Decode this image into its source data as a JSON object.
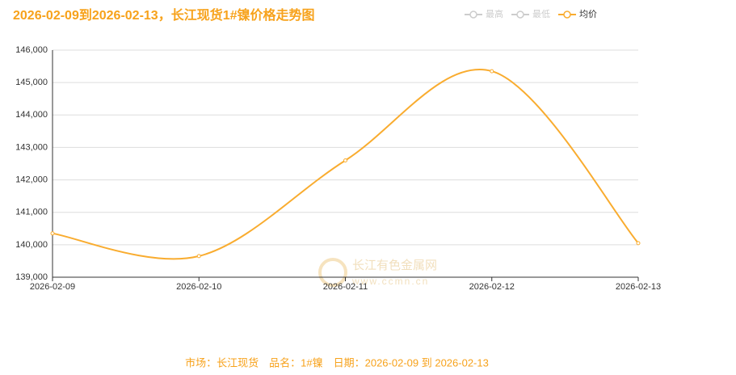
{
  "chart_data": {
    "type": "line",
    "title": "2026-02-09到2026-02-13，长江现货1#镍价格走势图",
    "categories": [
      "2026-02-09",
      "2026-02-10",
      "2026-02-11",
      "2026-02-12",
      "2026-02-13"
    ],
    "series": [
      {
        "name": "最高",
        "color": "#cccccc",
        "hidden": true,
        "values": [
          null,
          null,
          null,
          null,
          null
        ]
      },
      {
        "name": "最低",
        "color": "#cccccc",
        "hidden": true,
        "values": [
          null,
          null,
          null,
          null,
          null
        ]
      },
      {
        "name": "均价",
        "color": "#f9ac2f",
        "hidden": false,
        "values": [
          140350,
          139650,
          142600,
          145350,
          140050
        ]
      }
    ],
    "ylim": [
      139000,
      146000
    ],
    "yticks": [
      {
        "value": 139000,
        "label": "139,000"
      },
      {
        "value": 140000,
        "label": "140,000"
      },
      {
        "value": 141000,
        "label": "141,000"
      },
      {
        "value": 142000,
        "label": "142,000"
      },
      {
        "value": 143000,
        "label": "143,000"
      },
      {
        "value": 144000,
        "label": "144,000"
      },
      {
        "value": 145000,
        "label": "145,000"
      },
      {
        "value": 146000,
        "label": "146,000"
      }
    ],
    "grid": true,
    "legend": "top-right",
    "smooth": true,
    "watermark": [
      "长江有色金属网",
      "www.ccmn.cn"
    ],
    "footer": "市场：长江现货　品名：1#镍　日期：2026-02-09 到 2026-02-13"
  }
}
